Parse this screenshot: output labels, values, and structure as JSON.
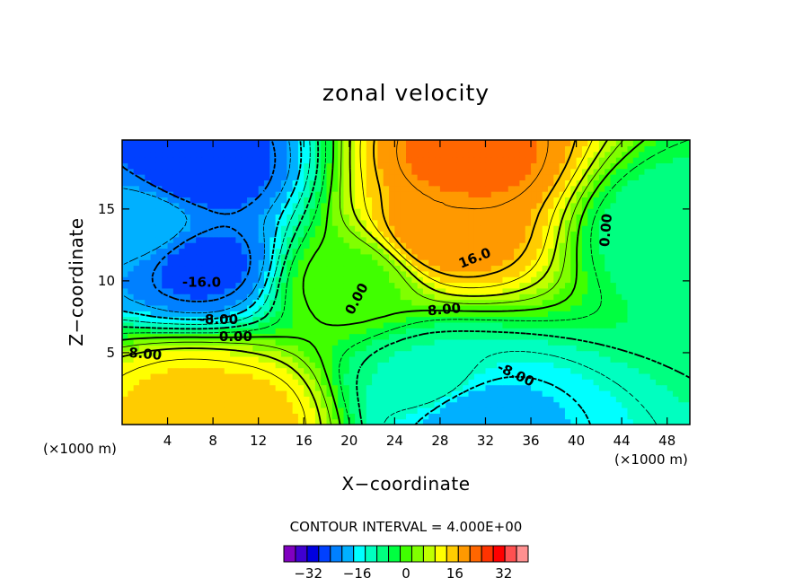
{
  "chart_data": {
    "type": "heatmap",
    "subtype": "filled-contour",
    "title": "zonal velocity",
    "xlabel": "X−coordinate",
    "ylabel": "Z−coordinate",
    "x_unit_label": "(×1000 m)",
    "y_unit_label": "(×1000 m)",
    "xlim": [
      0,
      50
    ],
    "ylim": [
      0,
      19.8
    ],
    "x_ticks": [
      4,
      8,
      12,
      16,
      20,
      24,
      28,
      32,
      36,
      40,
      44,
      48
    ],
    "y_ticks": [
      5,
      10,
      15
    ],
    "contour_interval_label": "CONTOUR INTERVAL = 4.000E+00",
    "colorbar": {
      "tick_labels": [
        "−32",
        "−16",
        "0",
        "16",
        "32"
      ],
      "tick_values": [
        -32,
        -16,
        0,
        16,
        32
      ],
      "levels_range": [
        -40,
        40
      ],
      "colors": [
        "#8000c0",
        "#4000d0",
        "#0000e0",
        "#0040ff",
        "#0080ff",
        "#00b0ff",
        "#00ffff",
        "#00ffc0",
        "#00ff80",
        "#00ff40",
        "#40ff00",
        "#80ff00",
        "#c0ff00",
        "#ffff00",
        "#ffcc00",
        "#ff9900",
        "#ff6600",
        "#ff3300",
        "#ff0000",
        "#ff5050",
        "#ff9090"
      ]
    },
    "contour_labels": [
      {
        "text": "16.0",
        "x": 31.2,
        "y": 11.3,
        "angle": -22
      },
      {
        "text": "8.00",
        "x": 28.4,
        "y": 7.7,
        "angle": -5
      },
      {
        "text": "0.00",
        "x": 21.0,
        "y": 8.6,
        "angle": -62
      },
      {
        "text": "0.00",
        "x": 43.0,
        "y": 13.5,
        "angle": -85
      },
      {
        "text": "-16.0",
        "x": 7.0,
        "y": 9.6,
        "angle": 0
      },
      {
        "text": "-8.00",
        "x": 8.5,
        "y": 7.0,
        "angle": 0
      },
      {
        "text": "0.00",
        "x": 10.0,
        "y": 5.8,
        "angle": 0
      },
      {
        "text": "8.00",
        "x": 2.0,
        "y": 4.6,
        "angle": 5
      },
      {
        "text": "-8.00",
        "x": 34.5,
        "y": 3.2,
        "angle": 25
      }
    ],
    "field_centers": [
      {
        "x": 6.5,
        "y": 17.8,
        "u": -28
      },
      {
        "x": 7.0,
        "y": 11.2,
        "u": -26
      },
      {
        "x": 2.0,
        "y": 14.0,
        "u": -18
      },
      {
        "x": 30.5,
        "y": 18.5,
        "u": 22
      },
      {
        "x": 28.5,
        "y": 13.5,
        "u": 20
      },
      {
        "x": 6.0,
        "y": 1.5,
        "u": 14
      },
      {
        "x": 10.0,
        "y": 0.4,
        "u": 15
      },
      {
        "x": 30.5,
        "y": 0.6,
        "u": -20
      },
      {
        "x": 27.0,
        "y": 3.0,
        "u": -10
      },
      {
        "x": 48.5,
        "y": 13.5,
        "u": -8
      },
      {
        "x": 20.0,
        "y": 10.0,
        "u": 1
      }
    ]
  }
}
